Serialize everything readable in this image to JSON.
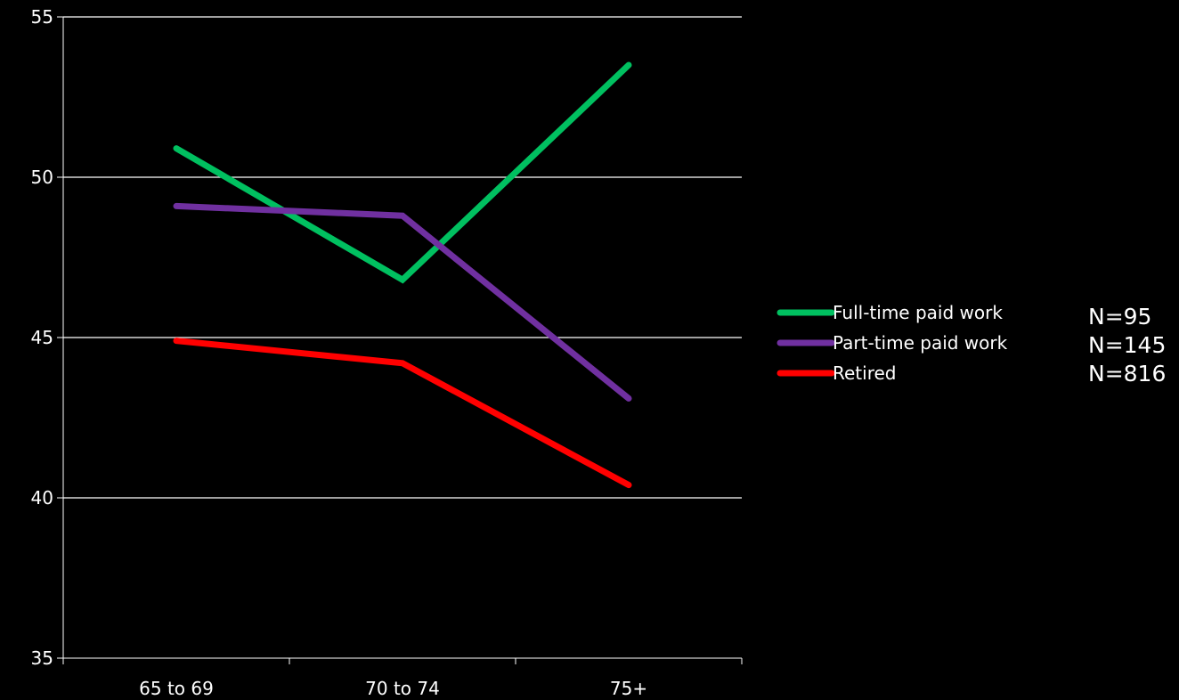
{
  "chart_data": {
    "type": "line",
    "categories": [
      "65 to 69",
      "70 to 74",
      "75+"
    ],
    "ylim": [
      35,
      55
    ],
    "yticks": [
      "35",
      "40",
      "45",
      "50",
      "55"
    ],
    "grid": true,
    "legend_position": "right",
    "series": [
      {
        "name": "Full-time paid work",
        "values": [
          50.9,
          46.8,
          53.5
        ],
        "color": "#00c060"
      },
      {
        "name": "Part-time paid work",
        "values": [
          49.1,
          48.8,
          43.1
        ],
        "color": "#7030a0"
      },
      {
        "name": "Retired",
        "values": [
          44.9,
          44.2,
          40.4
        ],
        "color": "#ff0000"
      }
    ]
  },
  "sample_sizes": [
    "N=95",
    "N=145",
    "N=816"
  ],
  "colors": {
    "background": "#000000",
    "axis": "#ffffff",
    "text": "#ffffff"
  }
}
